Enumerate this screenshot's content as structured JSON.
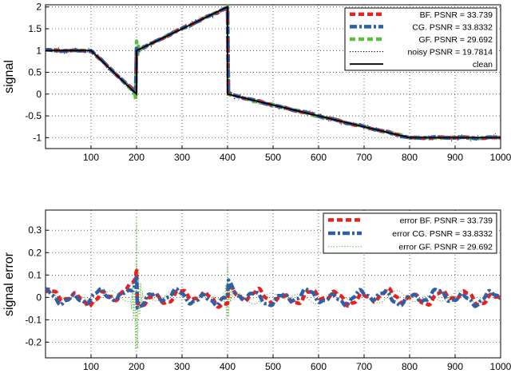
{
  "chart_data": [
    {
      "type": "line",
      "ylabel": "signal",
      "xlabel": "",
      "title": "",
      "xlim": [
        0,
        1000
      ],
      "ylim": [
        -1.25,
        2.05
      ],
      "xticks": [
        "100",
        "200",
        "300",
        "400",
        "500",
        "600",
        "700",
        "800",
        "900",
        "1000"
      ],
      "yticks": [
        "2",
        "1.5",
        "1",
        "0.5",
        "0",
        "-0.5",
        "-1"
      ],
      "grid": true,
      "legend_position": "top-right",
      "series": [
        {
          "name": "BF.  PSNR = 33.739",
          "color": "#e8211c",
          "style": "dashed-thick"
        },
        {
          "name": "CG.  PSNR = 33.8332",
          "color": "#2e5fa8",
          "style": "dashdot-thick"
        },
        {
          "name": "GF.  PSNR = 29.692",
          "color": "#5abf3c",
          "style": "dashed-thick"
        },
        {
          "name": "noisy PSNR = 19.7814",
          "color": "#000000",
          "style": "dotted"
        },
        {
          "name": "clean",
          "color": "#000000",
          "style": "solid"
        }
      ],
      "clean_signal": {
        "x": [
          0,
          100,
          200,
          200,
          400,
          400,
          800,
          1000
        ],
        "y": [
          1,
          1,
          0,
          1,
          2,
          0,
          -1,
          -1
        ]
      }
    },
    {
      "type": "line",
      "ylabel": "signal error",
      "xlabel": "",
      "title": "",
      "xlim": [
        0,
        1000
      ],
      "ylim": [
        -0.27,
        0.39
      ],
      "xticks": [
        "100",
        "200",
        "300",
        "400",
        "500",
        "600",
        "700",
        "800",
        "900",
        "1000"
      ],
      "yticks": [
        "0.3",
        "0.2",
        "0.1",
        "0",
        "-0.1",
        "-0.2"
      ],
      "grid": true,
      "legend_position": "top-right",
      "series": [
        {
          "name": "error BF.  PSNR = 33.739",
          "color": "#e8211c",
          "style": "dashed-thick"
        },
        {
          "name": "error CG.  PSNR = 33.8332",
          "color": "#2e5fa8",
          "style": "dashdot-thick"
        },
        {
          "name": "error GF.  PSNR = 29.692",
          "color": "#5abf3c",
          "style": "dotted"
        }
      ],
      "error_peaks": [
        {
          "series": "BF/CG",
          "x": 200,
          "y": 0.13
        },
        {
          "series": "GF",
          "x": 200,
          "y": 0.39
        },
        {
          "series": "GF",
          "x": 200,
          "y": -0.27
        },
        {
          "series": "BF/CG",
          "x": 400,
          "y": 0.06
        },
        {
          "series": "GF",
          "x": 400,
          "y": 0.16
        },
        {
          "series": "GF",
          "x": 400,
          "y": -0.05
        }
      ]
    }
  ]
}
